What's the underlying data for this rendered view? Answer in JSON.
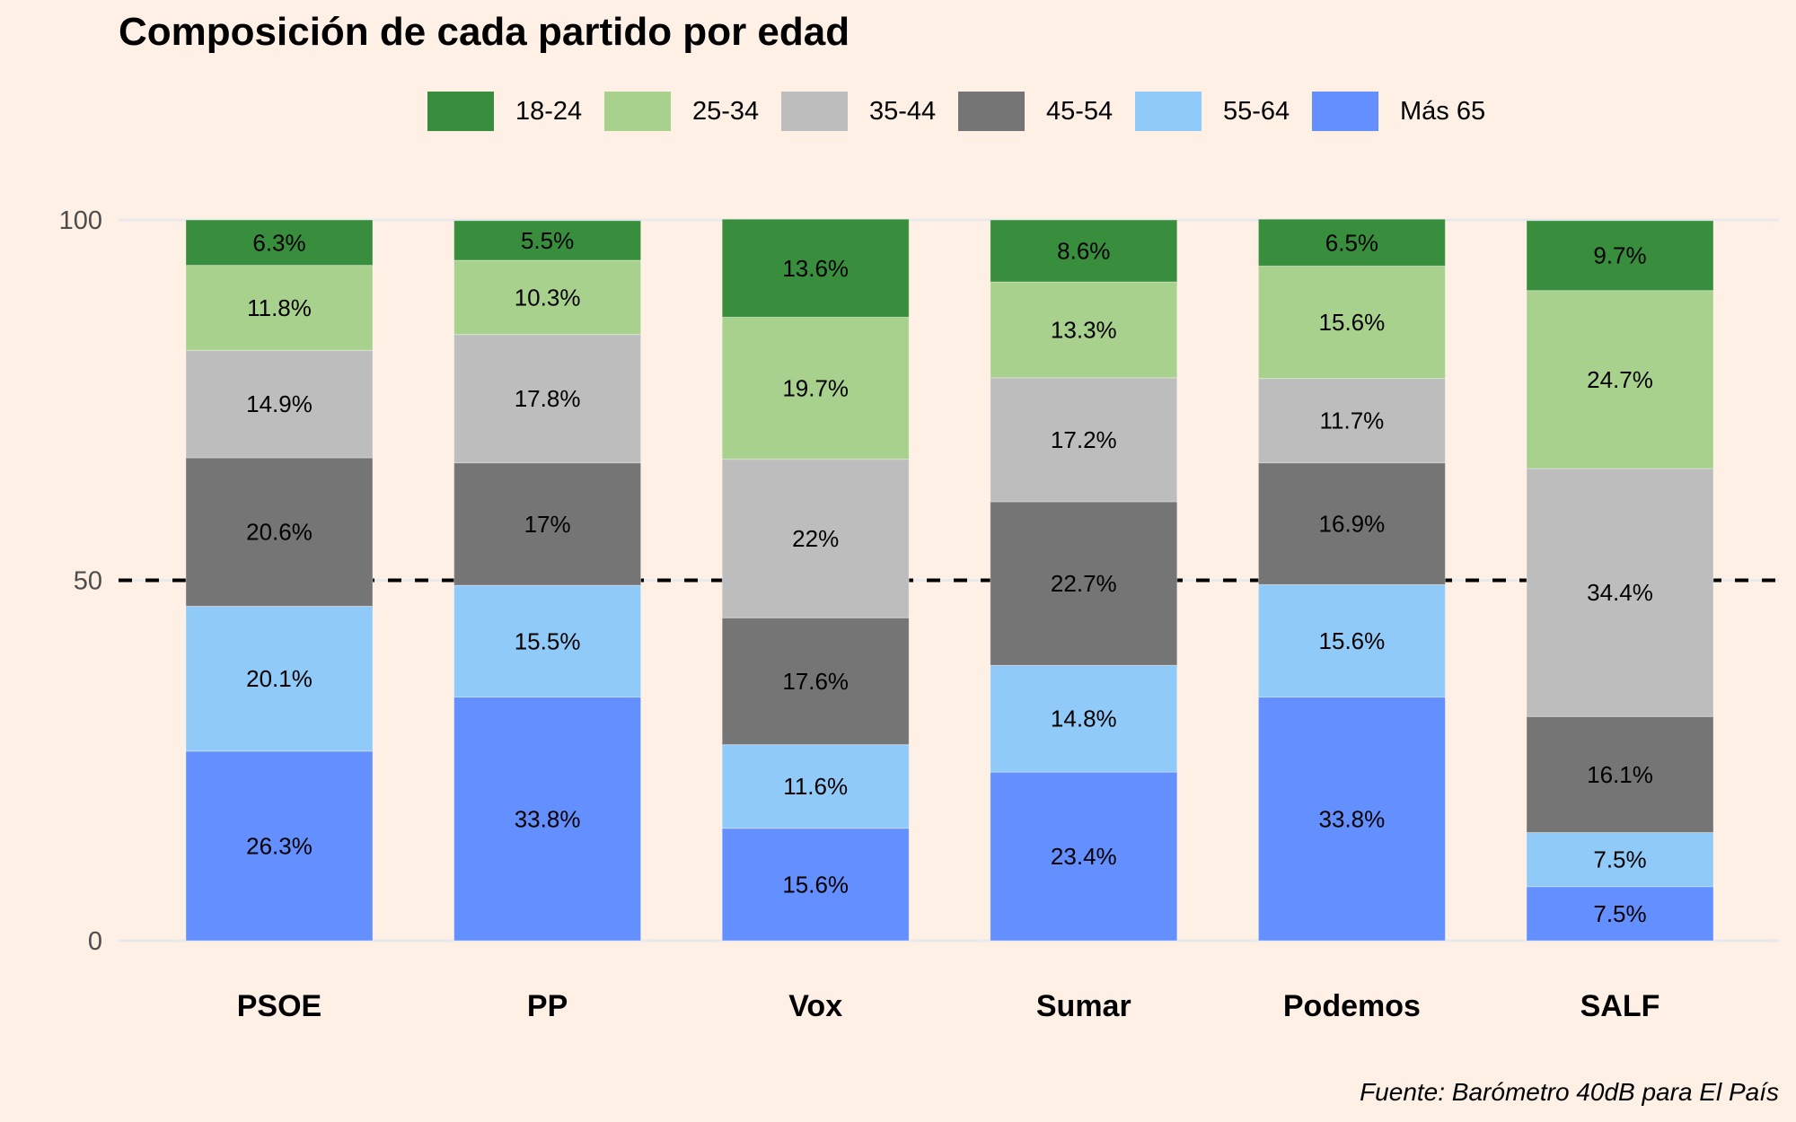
{
  "chart_data": {
    "type": "bar",
    "stacked": true,
    "title": "Composición de cada partido por edad",
    "caption": "Fuente: Barómetro 40dB para El País",
    "xlabel": "",
    "ylabel": "",
    "ylim": [
      0,
      100
    ],
    "yticks": [
      0,
      50,
      100
    ],
    "ytick_labels": [
      "0",
      "50",
      "100"
    ],
    "reference_line": {
      "y": 50,
      "style": "dashed",
      "color": "#000000"
    },
    "grid": true,
    "legend_position": "top",
    "categories": [
      "PSOE",
      "PP",
      "Vox",
      "Sumar",
      "Podemos",
      "SALF"
    ],
    "series": [
      {
        "name": "18-24",
        "color": "#388e3c",
        "values": [
          6.3,
          5.5,
          13.6,
          8.6,
          6.5,
          9.7
        ],
        "labels": [
          "6.3%",
          "5.5%",
          "13.6%",
          "8.6%",
          "6.5%",
          "9.7%"
        ]
      },
      {
        "name": "25-34",
        "color": "#a8d18d",
        "values": [
          11.8,
          10.3,
          19.7,
          13.3,
          15.6,
          24.7
        ],
        "labels": [
          "11.8%",
          "10.3%",
          "19.7%",
          "13.3%",
          "15.6%",
          "24.7%"
        ]
      },
      {
        "name": "35-44",
        "color": "#bdbdbd",
        "values": [
          14.9,
          17.8,
          22,
          17.2,
          11.7,
          34.4
        ],
        "labels": [
          "14.9%",
          "17.8%",
          "22%",
          "17.2%",
          "11.7%",
          "34.4%"
        ]
      },
      {
        "name": "45-54",
        "color": "#757575",
        "values": [
          20.6,
          17,
          17.6,
          22.7,
          16.9,
          16.1
        ],
        "labels": [
          "20.6%",
          "17%",
          "17.6%",
          "22.7%",
          "16.9%",
          "16.1%"
        ]
      },
      {
        "name": "55-64",
        "color": "#90caf9",
        "values": [
          20.1,
          15.5,
          11.6,
          14.8,
          15.6,
          7.5
        ],
        "labels": [
          "20.1%",
          "15.5%",
          "11.6%",
          "14.8%",
          "15.6%",
          "7.5%"
        ]
      },
      {
        "name": "Más 65",
        "color": "#648ffe",
        "values": [
          26.3,
          33.8,
          15.6,
          23.4,
          33.8,
          7.5
        ],
        "labels": [
          "26.3%",
          "33.8%",
          "15.6%",
          "23.4%",
          "33.8%",
          "7.5%"
        ]
      }
    ]
  },
  "colors": {
    "background": "#fef0e4",
    "gridline": "#e9e9eb",
    "tick_label": "#4d4d4d",
    "text": "#000000"
  }
}
